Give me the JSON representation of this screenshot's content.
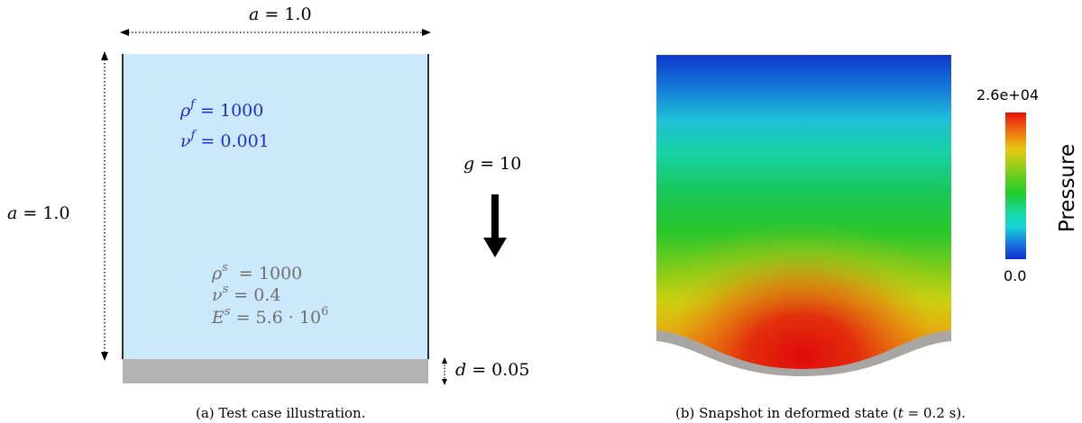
{
  "panel_a": {
    "width_label": "a = 1.0",
    "height_label": "a = 1.0",
    "fluid": {
      "rho_f": "ρᶠ = 1000",
      "nu_f": "νᶠ = 0.001"
    },
    "gravity_label": "g = 10",
    "solid": {
      "rho_s": "ρˢ = 1000",
      "nu_s": "νˢ = 0.4",
      "E_s": "Eˢ = 5.6 · 10⁶"
    },
    "thickness_label": "d = 0.05",
    "caption": "(a) Test case illustration.",
    "colors": {
      "fluid": "#cce8fb",
      "solid": "#b3b3b3",
      "fluid_text": "#1f2fd0",
      "solid_text": "#707070"
    }
  },
  "panel_b": {
    "colorbar": {
      "max_label": "2.6e+04",
      "min_label": "0.0",
      "title": "Pressure"
    },
    "caption": "(b) Snapshot in deformed state (t = 0.2 s).",
    "colors": {
      "wall": "#a8a6a2"
    }
  }
}
